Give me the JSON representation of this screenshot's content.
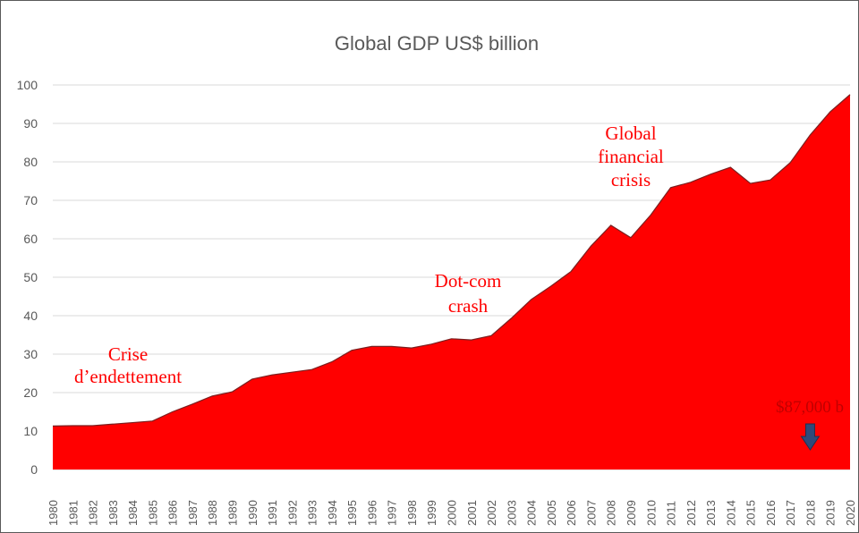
{
  "chart_data": {
    "type": "area",
    "title": "Global GDP US$ billion",
    "xlabel": "",
    "ylabel": "",
    "ylim": [
      0,
      100
    ],
    "yticks": [
      0,
      10,
      20,
      30,
      40,
      50,
      60,
      70,
      80,
      90,
      100
    ],
    "grid": true,
    "x": [
      "1980",
      "1981",
      "1982",
      "1983",
      "1984",
      "1985",
      "1986",
      "1987",
      "1988",
      "1989",
      "1990",
      "1991",
      "1992",
      "1993",
      "1994",
      "1995",
      "1996",
      "1997",
      "1998",
      "1999",
      "2000",
      "2001",
      "2002",
      "2003",
      "2004",
      "2005",
      "2006",
      "2007",
      "2008",
      "2009",
      "2010",
      "2011",
      "2012",
      "2013",
      "2014",
      "2015",
      "2016",
      "2017",
      "2018",
      "2019",
      "2020"
    ],
    "series": [
      {
        "values": [
          11.3,
          11.4,
          11.4,
          11.8,
          12.2,
          12.6,
          15.0,
          17.0,
          19.1,
          20.2,
          23.5,
          24.6,
          25.3,
          26.0,
          28.0,
          31.0,
          32.0,
          32.0,
          31.6,
          32.6,
          34.0,
          33.7,
          34.8,
          39.3,
          44.2,
          47.7,
          51.5,
          58.1,
          63.5,
          60.3,
          66.2,
          73.3,
          74.7,
          76.8,
          78.6,
          74.4,
          75.3,
          79.8,
          87.0,
          93.0,
          97.5
        ],
        "color": "#ff0000"
      }
    ],
    "annotations": [
      {
        "lines": [
          "Crise",
          "d’endettement"
        ],
        "color": "#ff0000"
      },
      {
        "lines": [
          "Dot-com",
          "crash"
        ],
        "color": "#ff0000"
      },
      {
        "lines": [
          "Global",
          "financial",
          "crisis"
        ],
        "color": "#ff0000"
      },
      {
        "lines": [
          "$87,000 b"
        ],
        "color": "#c00000",
        "points_to": "2018"
      }
    ],
    "arrow_color": "#2e4a7a"
  }
}
